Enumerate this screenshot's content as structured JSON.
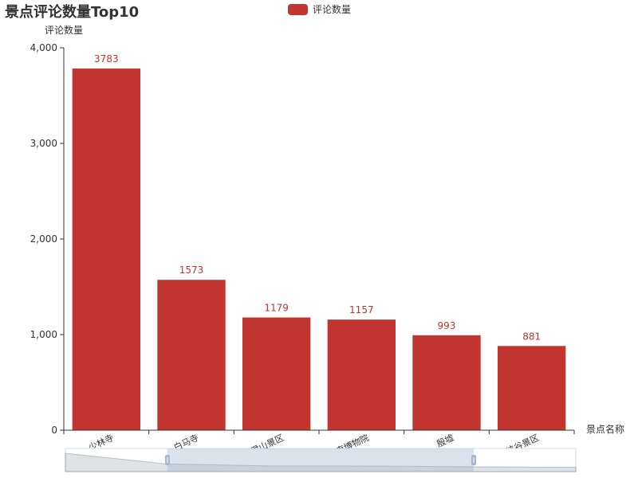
{
  "chart_data": {
    "type": "bar",
    "title": "景点评论数量Top10",
    "ylabel": "评论数量",
    "xlabel": "景点名称",
    "categories": [
      "少林寺",
      "白马寺",
      "老君山景区",
      "河南博物院",
      "殷墟",
      "太行大峡谷景区"
    ],
    "series": [
      {
        "name": "评论数量",
        "values": [
          3783,
          1573,
          1179,
          1157,
          993,
          881
        ]
      }
    ],
    "ylim": [
      0,
      4000
    ],
    "yticks": [
      "0",
      "1,000",
      "2,000",
      "3,000",
      "4,000"
    ],
    "legend_position": "top-center",
    "grid": false,
    "bar_color": "#c23531",
    "data_labels": true,
    "data_zoom": {
      "start_fraction": 0.2,
      "end_fraction": 0.8
    }
  }
}
